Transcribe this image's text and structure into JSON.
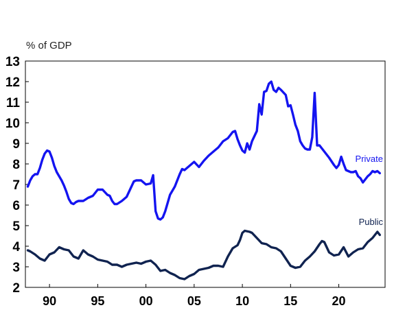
{
  "chart_data": {
    "type": "line",
    "unit_label": "% of GDP",
    "xlim": [
      1987.5,
      2024.8
    ],
    "ylim": [
      2,
      13
    ],
    "y_ticks": [
      "2",
      "3",
      "4",
      "5",
      "6",
      "7",
      "8",
      "9",
      "10",
      "11",
      "12",
      "13"
    ],
    "x_ticks": [
      {
        "x": 1990,
        "label": "90"
      },
      {
        "x": 1995,
        "label": "95"
      },
      {
        "x": 2000,
        "label": "00"
      },
      {
        "x": 2005,
        "label": "05"
      },
      {
        "x": 2010,
        "label": "10"
      },
      {
        "x": 2015,
        "label": "15"
      },
      {
        "x": 2020,
        "label": "20"
      }
    ],
    "grid": false,
    "legend": "inline labels at right end of each series",
    "series": [
      {
        "name": "Private",
        "color": "#1414f0",
        "points": [
          [
            1987.75,
            6.9
          ],
          [
            1988.0,
            7.2
          ],
          [
            1988.25,
            7.4
          ],
          [
            1988.5,
            7.5
          ],
          [
            1988.75,
            7.5
          ],
          [
            1989.0,
            7.8
          ],
          [
            1989.25,
            8.2
          ],
          [
            1989.5,
            8.5
          ],
          [
            1989.75,
            8.65
          ],
          [
            1990.0,
            8.6
          ],
          [
            1990.25,
            8.3
          ],
          [
            1990.5,
            7.9
          ],
          [
            1990.75,
            7.6
          ],
          [
            1991.0,
            7.4
          ],
          [
            1991.25,
            7.2
          ],
          [
            1991.5,
            6.95
          ],
          [
            1991.75,
            6.65
          ],
          [
            1992.0,
            6.3
          ],
          [
            1992.25,
            6.1
          ],
          [
            1992.5,
            6.05
          ],
          [
            1992.75,
            6.15
          ],
          [
            1993.0,
            6.2
          ],
          [
            1993.5,
            6.2
          ],
          [
            1994.0,
            6.35
          ],
          [
            1994.5,
            6.45
          ],
          [
            1995.0,
            6.75
          ],
          [
            1995.5,
            6.75
          ],
          [
            1996.0,
            6.5
          ],
          [
            1996.25,
            6.45
          ],
          [
            1996.5,
            6.2
          ],
          [
            1996.75,
            6.05
          ],
          [
            1997.0,
            6.05
          ],
          [
            1997.5,
            6.2
          ],
          [
            1997.75,
            6.3
          ],
          [
            1998.0,
            6.4
          ],
          [
            1998.5,
            6.9
          ],
          [
            1998.75,
            7.15
          ],
          [
            1999.0,
            7.2
          ],
          [
            1999.5,
            7.2
          ],
          [
            2000.0,
            7.0
          ],
          [
            2000.5,
            7.05
          ],
          [
            2000.75,
            7.45
          ],
          [
            2001.0,
            5.7
          ],
          [
            2001.25,
            5.35
          ],
          [
            2001.5,
            5.3
          ],
          [
            2001.75,
            5.4
          ],
          [
            2002.0,
            5.7
          ],
          [
            2002.5,
            6.5
          ],
          [
            2003.0,
            6.9
          ],
          [
            2003.5,
            7.5
          ],
          [
            2003.75,
            7.75
          ],
          [
            2004.0,
            7.7
          ],
          [
            2004.5,
            7.9
          ],
          [
            2005.0,
            8.1
          ],
          [
            2005.5,
            7.85
          ],
          [
            2006.0,
            8.15
          ],
          [
            2006.5,
            8.4
          ],
          [
            2007.0,
            8.6
          ],
          [
            2007.5,
            8.8
          ],
          [
            2008.0,
            9.1
          ],
          [
            2008.5,
            9.25
          ],
          [
            2009.0,
            9.55
          ],
          [
            2009.25,
            9.6
          ],
          [
            2009.5,
            9.2
          ],
          [
            2009.75,
            8.9
          ],
          [
            2010.0,
            8.65
          ],
          [
            2010.25,
            8.55
          ],
          [
            2010.5,
            9.0
          ],
          [
            2010.75,
            8.7
          ],
          [
            2011.0,
            9.1
          ],
          [
            2011.5,
            9.6
          ],
          [
            2011.75,
            10.9
          ],
          [
            2012.0,
            10.4
          ],
          [
            2012.25,
            11.5
          ],
          [
            2012.5,
            11.55
          ],
          [
            2012.75,
            11.9
          ],
          [
            2013.0,
            12.0
          ],
          [
            2013.25,
            11.6
          ],
          [
            2013.5,
            11.5
          ],
          [
            2013.75,
            11.7
          ],
          [
            2014.0,
            11.6
          ],
          [
            2014.5,
            11.35
          ],
          [
            2014.75,
            10.8
          ],
          [
            2015.0,
            10.85
          ],
          [
            2015.25,
            10.4
          ],
          [
            2015.5,
            9.9
          ],
          [
            2015.75,
            9.6
          ],
          [
            2016.0,
            9.1
          ],
          [
            2016.25,
            8.9
          ],
          [
            2016.5,
            8.75
          ],
          [
            2016.75,
            8.7
          ],
          [
            2017.0,
            8.7
          ],
          [
            2017.25,
            9.3
          ],
          [
            2017.5,
            11.45
          ],
          [
            2017.75,
            8.9
          ],
          [
            2018.0,
            8.9
          ],
          [
            2018.5,
            8.6
          ],
          [
            2019.0,
            8.3
          ],
          [
            2019.5,
            7.95
          ],
          [
            2019.75,
            7.8
          ],
          [
            2020.0,
            7.95
          ],
          [
            2020.25,
            8.35
          ],
          [
            2020.5,
            8.0
          ],
          [
            2020.75,
            7.7
          ],
          [
            2021.0,
            7.65
          ],
          [
            2021.25,
            7.6
          ],
          [
            2021.5,
            7.6
          ],
          [
            2021.75,
            7.65
          ],
          [
            2022.0,
            7.4
          ],
          [
            2022.25,
            7.3
          ],
          [
            2022.5,
            7.1
          ],
          [
            2022.75,
            7.25
          ],
          [
            2023.0,
            7.4
          ],
          [
            2023.25,
            7.5
          ],
          [
            2023.5,
            7.65
          ],
          [
            2023.75,
            7.6
          ],
          [
            2024.0,
            7.65
          ],
          [
            2024.25,
            7.55
          ]
        ]
      },
      {
        "name": "Public",
        "color": "#102350",
        "points": [
          [
            1987.75,
            3.8
          ],
          [
            1988.0,
            3.75
          ],
          [
            1988.5,
            3.6
          ],
          [
            1989.0,
            3.4
          ],
          [
            1989.5,
            3.3
          ],
          [
            1990.0,
            3.6
          ],
          [
            1990.5,
            3.7
          ],
          [
            1991.0,
            3.95
          ],
          [
            1991.5,
            3.85
          ],
          [
            1992.0,
            3.8
          ],
          [
            1992.5,
            3.5
          ],
          [
            1993.0,
            3.4
          ],
          [
            1993.5,
            3.8
          ],
          [
            1994.0,
            3.6
          ],
          [
            1994.5,
            3.5
          ],
          [
            1995.0,
            3.35
          ],
          [
            1995.5,
            3.3
          ],
          [
            1996.0,
            3.25
          ],
          [
            1996.5,
            3.1
          ],
          [
            1997.0,
            3.1
          ],
          [
            1997.5,
            3.0
          ],
          [
            1998.0,
            3.1
          ],
          [
            1998.5,
            3.15
          ],
          [
            1999.0,
            3.2
          ],
          [
            1999.5,
            3.15
          ],
          [
            2000.0,
            3.25
          ],
          [
            2000.5,
            3.3
          ],
          [
            2001.0,
            3.1
          ],
          [
            2001.5,
            2.8
          ],
          [
            2002.0,
            2.85
          ],
          [
            2002.5,
            2.7
          ],
          [
            2003.0,
            2.6
          ],
          [
            2003.5,
            2.45
          ],
          [
            2004.0,
            2.4
          ],
          [
            2004.5,
            2.55
          ],
          [
            2005.0,
            2.65
          ],
          [
            2005.5,
            2.85
          ],
          [
            2006.0,
            2.9
          ],
          [
            2006.5,
            2.95
          ],
          [
            2007.0,
            3.05
          ],
          [
            2007.5,
            3.05
          ],
          [
            2008.0,
            3.0
          ],
          [
            2008.5,
            3.5
          ],
          [
            2009.0,
            3.9
          ],
          [
            2009.5,
            4.05
          ],
          [
            2009.75,
            4.3
          ],
          [
            2010.0,
            4.65
          ],
          [
            2010.25,
            4.75
          ],
          [
            2010.75,
            4.7
          ],
          [
            2011.0,
            4.65
          ],
          [
            2011.5,
            4.4
          ],
          [
            2012.0,
            4.15
          ],
          [
            2012.5,
            4.1
          ],
          [
            2013.0,
            3.95
          ],
          [
            2013.5,
            3.9
          ],
          [
            2014.0,
            3.75
          ],
          [
            2014.5,
            3.4
          ],
          [
            2015.0,
            3.05
          ],
          [
            2015.5,
            2.95
          ],
          [
            2016.0,
            3.0
          ],
          [
            2016.5,
            3.3
          ],
          [
            2017.0,
            3.5
          ],
          [
            2017.5,
            3.75
          ],
          [
            2018.0,
            4.1
          ],
          [
            2018.25,
            4.25
          ],
          [
            2018.5,
            4.2
          ],
          [
            2019.0,
            3.7
          ],
          [
            2019.5,
            3.55
          ],
          [
            2020.0,
            3.6
          ],
          [
            2020.5,
            3.95
          ],
          [
            2021.0,
            3.5
          ],
          [
            2021.5,
            3.7
          ],
          [
            2022.0,
            3.85
          ],
          [
            2022.5,
            3.9
          ],
          [
            2023.0,
            4.2
          ],
          [
            2023.5,
            4.4
          ],
          [
            2024.0,
            4.7
          ],
          [
            2024.25,
            4.55
          ]
        ]
      }
    ]
  }
}
